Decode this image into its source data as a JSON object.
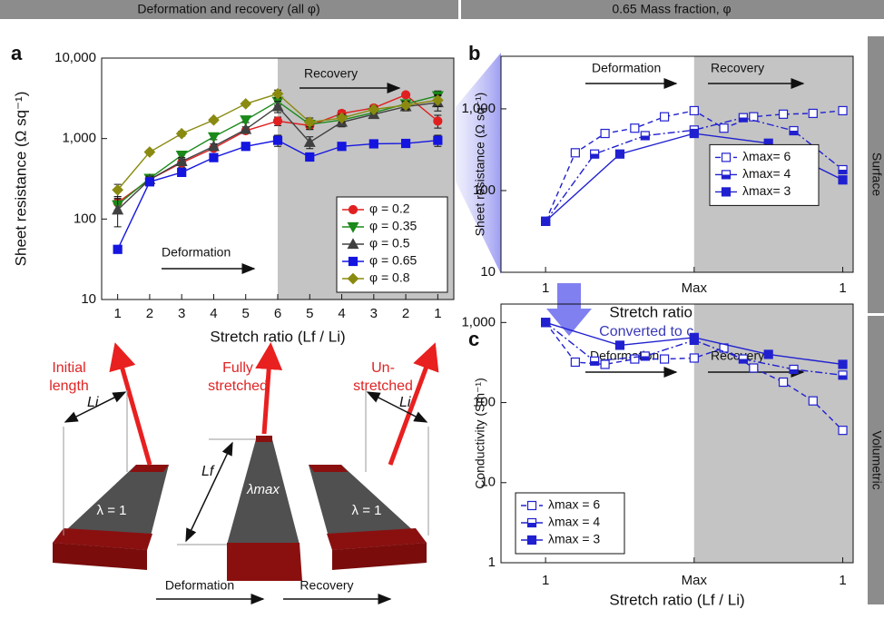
{
  "panel_headers": [
    "Deformation and recovery (all φ)",
    "0.65 Mass fraction, φ"
  ],
  "side_labels": [
    "Surface",
    "Volumetric"
  ],
  "conversion_note": "Converted to conductivity",
  "diagram": {
    "labels": [
      "Initial length",
      "Fully stretched",
      "Un-stretched"
    ],
    "left_length": "Li",
    "stretched_length": "Lf",
    "stretched_ratio": "λmax",
    "left_ratio": "λ = 1",
    "right_ratio": "λ = 1",
    "right_length": "Li",
    "deformation": "Deformation",
    "recovery": "Recovery"
  },
  "chart_data": [
    {
      "panel": "a",
      "type": "line",
      "y_scale": "log",
      "ylabel": "Sheet resistance (Ω sq⁻¹)",
      "xlabel": "Stretch ratio (Lf / Li)",
      "categories": [
        "1",
        "2",
        "3",
        "4",
        "5",
        "6",
        "5",
        "4",
        "3",
        "2",
        "1"
      ],
      "ylim": [
        10,
        10000
      ],
      "yticks": [
        10,
        100,
        {
          "value": 1000,
          "label": "1,000"
        },
        {
          "value": 10000,
          "label": "10,000"
        }
      ],
      "legend": "lower right",
      "annotations": [
        "Recovery",
        "Deformation"
      ],
      "series": [
        {
          "name": "φ = 0.2",
          "color": "#e02020",
          "marker": "circle",
          "fill": "full",
          "linestyle": "solid",
          "values": [
            160,
            310,
            500,
            760,
            1250,
            1650,
            1450,
            2050,
            2400,
            3500,
            1650
          ],
          "errors": [
            30,
            30,
            60,
            60,
            80,
            200,
            150,
            200,
            200,
            200,
            300
          ]
        },
        {
          "name": "φ = 0.35",
          "color": "#1a8a1a",
          "marker": "tri-down",
          "fill": "full",
          "linestyle": "solid",
          "values": [
            150,
            320,
            620,
            1050,
            1700,
            2900,
            1500,
            1700,
            2100,
            2700,
            3400
          ],
          "errors": [
            30,
            30,
            60,
            80,
            120,
            300,
            200,
            200,
            200,
            300,
            500
          ]
        },
        {
          "name": "φ = 0.5",
          "color": "#404040",
          "marker": "tri-up",
          "fill": "full",
          "linestyle": "solid",
          "values": [
            130,
            310,
            520,
            800,
            1300,
            2500,
            900,
            1600,
            2000,
            2500,
            2800
          ],
          "errors": [
            50,
            30,
            60,
            60,
            100,
            400,
            150,
            200,
            200,
            300,
            600
          ]
        },
        {
          "name": "φ = 0.65",
          "color": "#1515e0",
          "marker": "square",
          "fill": "full",
          "linestyle": "solid",
          "values": [
            42,
            290,
            380,
            580,
            800,
            950,
            590,
            800,
            860,
            870,
            950
          ],
          "errors": [
            4,
            20,
            30,
            40,
            50,
            150,
            40,
            50,
            50,
            50,
            150
          ]
        },
        {
          "name": "φ = 0.8",
          "color": "#8a8a10",
          "marker": "diamond",
          "fill": "full",
          "linestyle": "solid",
          "values": [
            230,
            680,
            1150,
            1700,
            2700,
            3600,
            1600,
            1800,
            2300,
            2600,
            3000
          ],
          "errors": [
            40,
            40,
            80,
            100,
            150,
            400,
            200,
            200,
            200,
            300,
            500
          ]
        }
      ]
    },
    {
      "panel": "b",
      "type": "line",
      "y_scale": "log",
      "ylabel": "Sheet resistance (Ω sq⁻¹)",
      "xlabel": "Stretch ratio (Lf / Li)",
      "xlim": [
        -0.3,
        2.07
      ],
      "xticks": [
        {
          "value": 0,
          "label": "1"
        },
        {
          "value": 1,
          "label": "Max"
        },
        {
          "value": 2,
          "label": "1"
        }
      ],
      "ylim": [
        10,
        4400
      ],
      "yticks": [
        10,
        100,
        {
          "value": 1000,
          "label": "1,000"
        }
      ],
      "legend": "center right",
      "annotations": [
        "Deformation",
        "Recovery"
      ],
      "series": [
        {
          "name": "λmax= 6",
          "color": "#2020d0",
          "marker": "square",
          "fill": "open",
          "linestyle": "dashed",
          "x": [
            0,
            0.2,
            0.4,
            0.6,
            0.8,
            1,
            1.2,
            1.4,
            1.6,
            1.8,
            2
          ],
          "values": [
            42,
            290,
            500,
            580,
            800,
            950,
            580,
            800,
            860,
            880,
            950
          ]
        },
        {
          "name": "λmax= 4",
          "color": "#2020d0",
          "marker": "square",
          "fill": "half",
          "linestyle": "dashdot",
          "x": [
            0,
            0.33,
            0.67,
            1,
            1.33,
            1.67,
            2
          ],
          "values": [
            42,
            280,
            470,
            550,
            780,
            540,
            180
          ]
        },
        {
          "name": "λmax= 3",
          "color": "#2020d0",
          "marker": "square",
          "fill": "full",
          "linestyle": "solid",
          "x": [
            0,
            0.5,
            1,
            1.5,
            2
          ],
          "values": [
            42,
            280,
            500,
            380,
            135
          ]
        }
      ]
    },
    {
      "panel": "c",
      "type": "line",
      "y_scale": "log",
      "ylabel": "Conductivity (Sm⁻¹)",
      "xlabel": "Stretch ratio (Lf / Li)",
      "xlim": [
        -0.3,
        2.07
      ],
      "xticks": [
        {
          "value": 0,
          "label": "1"
        },
        {
          "value": 1,
          "label": "Max"
        },
        {
          "value": 2,
          "label": "1"
        }
      ],
      "ylim": [
        1,
        1700
      ],
      "yticks": [
        1,
        10,
        100,
        {
          "value": 1000,
          "label": "1,000"
        }
      ],
      "legend": "lower left",
      "annotations": [
        "Deformation",
        "Recovery"
      ],
      "series": [
        {
          "name": "λmax = 6",
          "color": "#2020d0",
          "marker": "square",
          "fill": "open",
          "linestyle": "dashed",
          "x": [
            0,
            0.2,
            0.4,
            0.6,
            0.8,
            1,
            1.2,
            1.4,
            1.6,
            1.8,
            2
          ],
          "values": [
            1000,
            320,
            300,
            350,
            350,
            360,
            480,
            270,
            180,
            105,
            45
          ]
        },
        {
          "name": "λmax = 4",
          "color": "#2020d0",
          "marker": "square",
          "fill": "half",
          "linestyle": "dashdot",
          "x": [
            0,
            0.33,
            0.67,
            1,
            1.33,
            1.67,
            2
          ],
          "values": [
            1000,
            330,
            380,
            600,
            350,
            260,
            220
          ]
        },
        {
          "name": "λmax = 3",
          "color": "#2020d0",
          "marker": "square",
          "fill": "full",
          "linestyle": "solid",
          "x": [
            0,
            0.5,
            1,
            1.5,
            2
          ],
          "values": [
            1000,
            520,
            650,
            400,
            300
          ]
        }
      ]
    }
  ]
}
